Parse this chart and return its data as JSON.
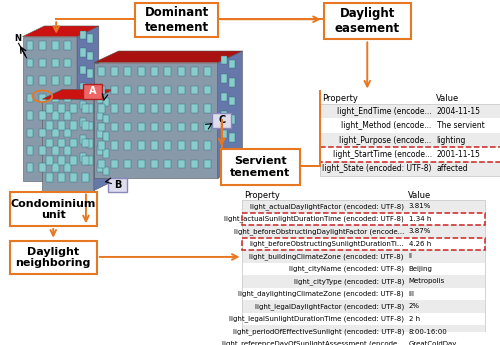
{
  "fig_width": 5.0,
  "fig_height": 3.45,
  "dpi": 100,
  "bg_color": "#ffffff",
  "orange": "#E87722",
  "gray_bg": "#EBEBEB",
  "white": "#ffffff",
  "red_dashed": "#CC2222",
  "dominant_label": "Dominant\ntenement",
  "servient_label": "Servient\ntenement",
  "condo_label": "Condominium\nunit",
  "daylight_neighbor_label": "Daylight\nneighboring",
  "daylight_easement_label": "Daylight\neasement",
  "upper_table_rows": [
    [
      "light_EndTime (encode...",
      "2004-11-15"
    ],
    [
      "light_Method (encode...",
      "The servient"
    ],
    [
      "light_Purpose (encode...",
      "lighting"
    ],
    [
      "light_StartTime (encode...",
      "2001-11-15"
    ],
    [
      "light_State (encoded: UTF-8)",
      "affected"
    ]
  ],
  "upper_highlighted": [
    3
  ],
  "lower_table_rows": [
    [
      "light_actualDaylightFactor (encoded: UTF-8)",
      "3.81%"
    ],
    [
      "light_actualSunlightDurationTime (encoded: UTF-8)",
      "1.34 h"
    ],
    [
      "light_beforeObstructingDaylightFactor (encode...",
      "3.87%"
    ],
    [
      "light_beforeObstructingSunlightDurationTi...",
      "4.26 h"
    ],
    [
      "light_buildingClimateZone (encoded: UTF-8)",
      "II"
    ],
    [
      "light_cityName (encoded: UTF-8)",
      "Beijing"
    ],
    [
      "light_cityType (encoded: UTF-8)",
      "Metropolis"
    ],
    [
      "light_daylightingClimateZone (encoded: UTF-8)",
      "III"
    ],
    [
      "light_legalDaylightFactor (encoded: UTF-8)",
      "2%"
    ],
    [
      "light_legalSunlightDurationTime (encoded: UTF-8)",
      "2 h"
    ],
    [
      "light_periodOfEffectiveSunlight (encoded: UTF-8)",
      "8:00-16:00"
    ],
    [
      "light_referenceDayOfSunlightAssessment (encode...",
      "GreatColdDay"
    ]
  ],
  "lower_highlighted": [
    1,
    3
  ],
  "bldg_face": "#8888AA",
  "bldg_top_red": "#CC2222",
  "bldg_side": "#6666AA",
  "bldg_side_dark": "#555566",
  "win_color": "#88CCCC",
  "win_edge": "#336677"
}
